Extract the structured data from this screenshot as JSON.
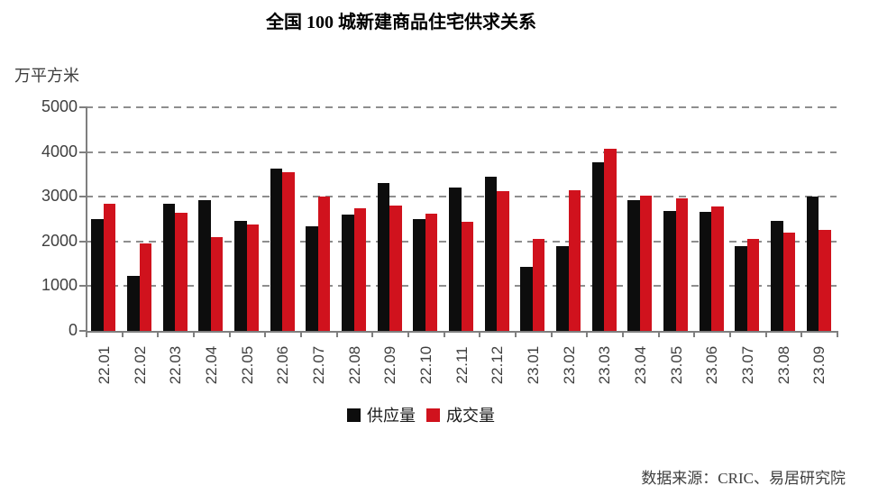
{
  "title": "全国 100 城新建商品住宅供求关系",
  "unit_label": "万平方米",
  "source": "数据来源：CRIC、易居研究院",
  "legend": [
    {
      "label": "供应量",
      "color": "#0d0d0d"
    },
    {
      "label": "成交量",
      "color": "#d0121d"
    }
  ],
  "colors": {
    "supply_bar": "#0d0d0d",
    "transaction_bar": "#d0121d",
    "gridline": "#8e8e8e",
    "axis": "#7f7f7f",
    "axis_text": "#3f3f3f",
    "title_text": "#000000"
  },
  "chart_data": {
    "type": "bar",
    "title": "全国 100 城新建商品住宅供求关系",
    "ylabel": "万平方米",
    "ylim": [
      0,
      5000
    ],
    "ytick_interval": 1000,
    "yticks": [
      0,
      1000,
      2000,
      3000,
      4000,
      5000
    ],
    "grid": "horizontal-dashed",
    "legend_position": "bottom",
    "categories": [
      "22.01",
      "22.02",
      "22.03",
      "22.04",
      "22.05",
      "22.06",
      "22.07",
      "22.08",
      "22.09",
      "22.10",
      "22.11",
      "22.12",
      "23.01",
      "23.02",
      "23.03",
      "23.04",
      "23.05",
      "23.06",
      "23.07",
      "23.08",
      "23.09"
    ],
    "series": [
      {
        "name": "供应量",
        "color": "#0d0d0d",
        "values": [
          2490,
          1220,
          2850,
          2930,
          2460,
          3620,
          2330,
          2600,
          3300,
          2490,
          3200,
          3440,
          1440,
          1890,
          3770,
          2930,
          2680,
          2670,
          1890,
          2450,
          3000
        ]
      },
      {
        "name": "成交量",
        "color": "#d0121d",
        "values": [
          2840,
          1950,
          2650,
          2100,
          2370,
          3550,
          3000,
          2740,
          2800,
          2620,
          2440,
          3130,
          2050,
          3150,
          4070,
          3030,
          2970,
          2780,
          2050,
          2200,
          2260
        ]
      }
    ]
  }
}
